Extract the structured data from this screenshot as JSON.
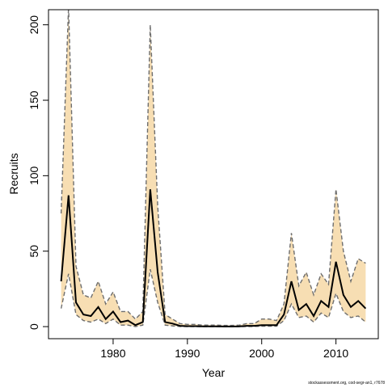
{
  "chart_data": {
    "type": "line",
    "title": "",
    "xlabel": "Year",
    "ylabel": "Recruits",
    "xlim": [
      1971.3,
      2015.7
    ],
    "ylim": [
      -8,
      210
    ],
    "xticks": [
      1980,
      1990,
      2000,
      2010
    ],
    "yticks": [
      0,
      50,
      100,
      150,
      200
    ],
    "grid": false,
    "legend": "none",
    "colors": {
      "band": "#f7deb3",
      "line": "#000000",
      "bounds": "#6e6e6e",
      "frame": "#000000"
    },
    "x": [
      1973,
      1974,
      1975,
      1976,
      1977,
      1978,
      1979,
      1980,
      1981,
      1982,
      1983,
      1984,
      1985,
      1986,
      1987,
      1988,
      1989,
      1990,
      1991,
      1992,
      1993,
      1994,
      1995,
      1996,
      1997,
      1998,
      1999,
      2000,
      2001,
      2002,
      2003,
      2004,
      2005,
      2006,
      2007,
      2008,
      2009,
      2010,
      2011,
      2012,
      2013,
      2014
    ],
    "series": [
      {
        "role": "estimate",
        "values": [
          30,
          87,
          16,
          8,
          7,
          13,
          5,
          10,
          3,
          4,
          1,
          3,
          91,
          36,
          3,
          2,
          0.5,
          0.3,
          0.3,
          0.2,
          0.2,
          0.2,
          0.1,
          0.1,
          0.2,
          0.5,
          0.5,
          1,
          1,
          1,
          8,
          30,
          11,
          15,
          7,
          17,
          13,
          43,
          21,
          13,
          17,
          12
        ]
      },
      {
        "role": "upper",
        "values": [
          75,
          212,
          40,
          21,
          19,
          30,
          15,
          23,
          10,
          10,
          5,
          10,
          200,
          80,
          8,
          5,
          2,
          1.5,
          1.5,
          1,
          1,
          1,
          0.8,
          0.8,
          1,
          2,
          2,
          5,
          5,
          4,
          15,
          62,
          27,
          36,
          21,
          35,
          28,
          91,
          50,
          30,
          45,
          42
        ]
      },
      {
        "role": "lower",
        "values": [
          12,
          35,
          8,
          4,
          3,
          5,
          2,
          5,
          1,
          1,
          0,
          1,
          38,
          16,
          1,
          0.5,
          0.1,
          0,
          0,
          0,
          0,
          0,
          0,
          0,
          0,
          0.1,
          0.1,
          0.3,
          0.3,
          0.3,
          4,
          15,
          6,
          7,
          3,
          9,
          6,
          22,
          10,
          6,
          7,
          3
        ]
      }
    ]
  },
  "credit": "stockassessment.org, cod-segr-an1, r7678"
}
